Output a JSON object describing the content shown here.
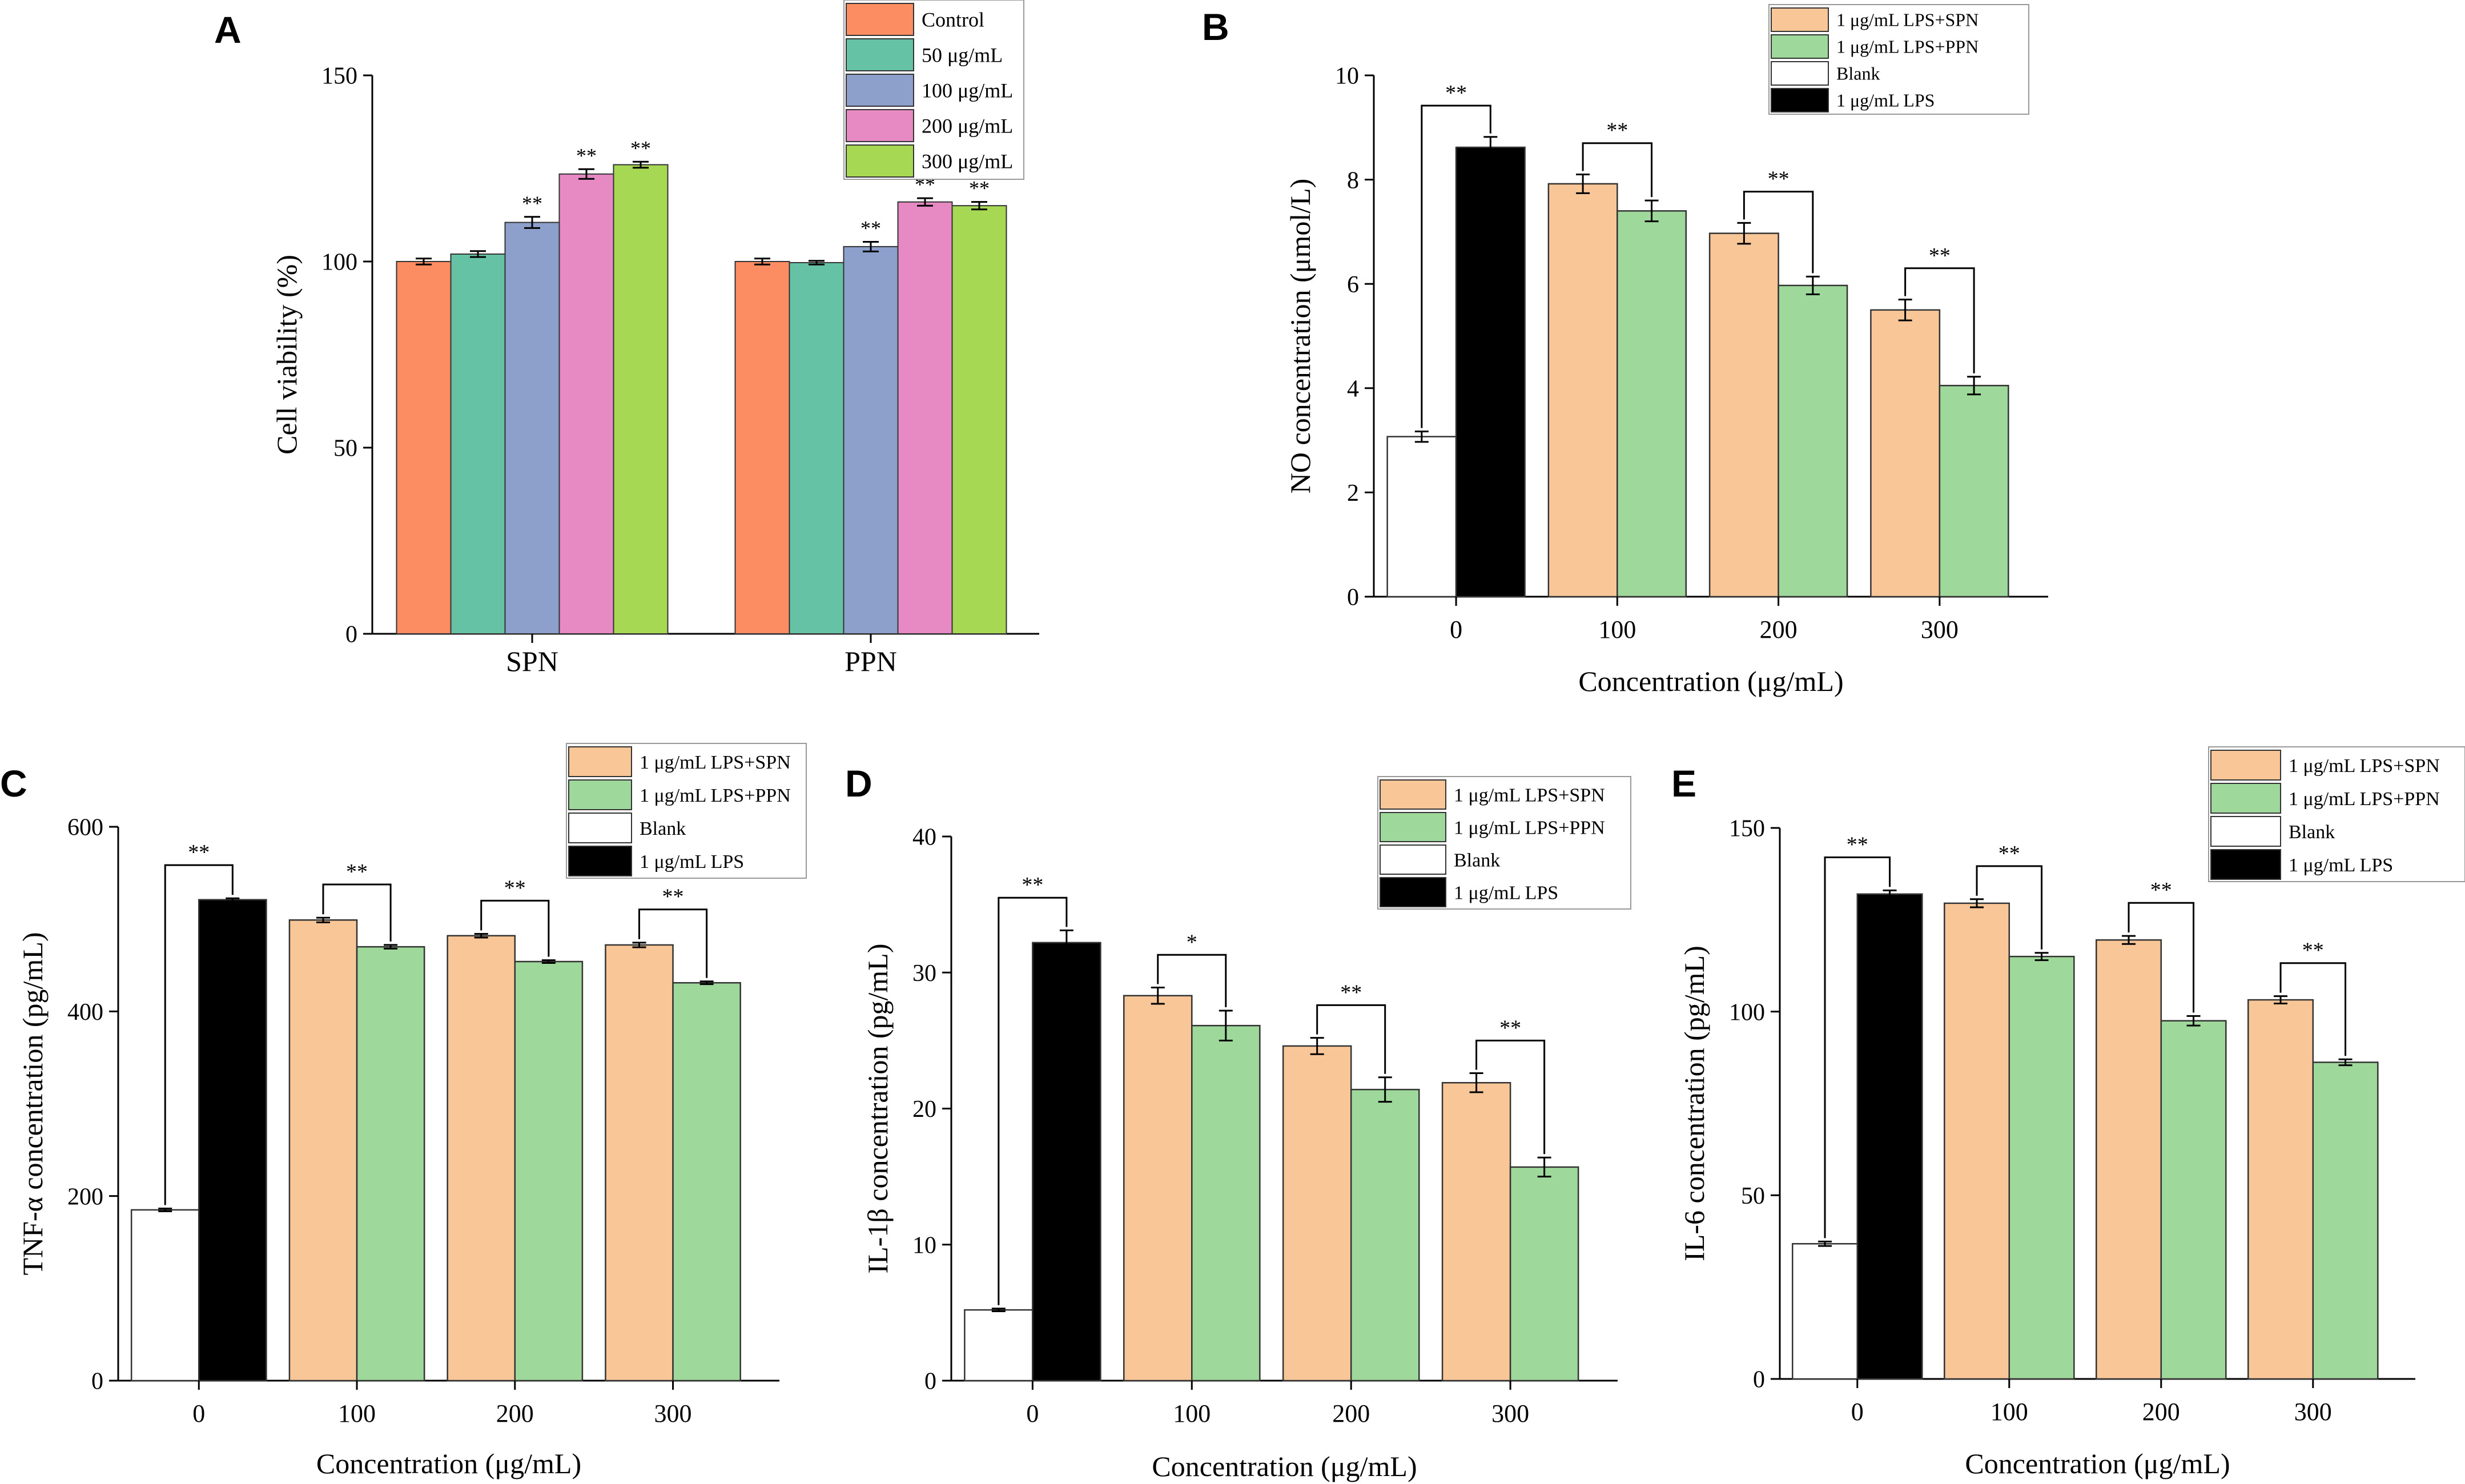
{
  "chart_data": [
    {
      "panel": "A",
      "type": "bar",
      "categories": [
        "SPN",
        "PPN"
      ],
      "series": [
        {
          "name": "Control",
          "color": "#FC8D62",
          "values": [
            100,
            100
          ],
          "errors": [
            0.8,
            0.8
          ],
          "sig": [
            "",
            ""
          ]
        },
        {
          "name": "50 μg/mL",
          "color": "#66C2A5",
          "values": [
            102,
            99.7
          ],
          "errors": [
            0.8,
            0.5
          ],
          "sig": [
            "",
            ""
          ]
        },
        {
          "name": "100 μg/mL",
          "color": "#8DA0CB",
          "values": [
            110.5,
            104
          ],
          "errors": [
            1.5,
            1.3
          ],
          "sig": [
            "**",
            "**"
          ]
        },
        {
          "name": "200 μg/mL",
          "color": "#E78AC3",
          "values": [
            123.5,
            116
          ],
          "errors": [
            1.3,
            1.0
          ],
          "sig": [
            "**",
            "**"
          ]
        },
        {
          "name": "300 μg/mL",
          "color": "#A6D854",
          "values": [
            126,
            115
          ],
          "errors": [
            0.8,
            1.0
          ],
          "sig": [
            "**",
            "**"
          ]
        }
      ],
      "xlabel": "",
      "ylabel": "Cell viability (%)",
      "ylim": [
        0,
        150
      ],
      "yticks": [
        "0",
        "50",
        "100",
        "150"
      ],
      "legend": "top-right"
    },
    {
      "panel": "B",
      "type": "bar",
      "categories": [
        "0",
        "100",
        "200",
        "300"
      ],
      "xlabel": "Concentration (μg/mL)",
      "ylabel": "NO concentration (μmol/L)",
      "ylim": [
        0,
        10
      ],
      "yticks": [
        "0",
        "2",
        "4",
        "6",
        "8",
        "10"
      ],
      "bars": [
        {
          "value": 3.07,
          "error": 0.1,
          "series": 2
        },
        {
          "value": 8.62,
          "error": 0.2,
          "series": 3
        },
        {
          "value": 7.92,
          "error": 0.18,
          "series": 0
        },
        {
          "value": 7.4,
          "error": 0.2,
          "series": 1
        },
        {
          "value": 6.97,
          "error": 0.2,
          "series": 0
        },
        {
          "value": 5.97,
          "error": 0.17,
          "series": 1
        },
        {
          "value": 5.5,
          "error": 0.2,
          "series": 0
        },
        {
          "value": 4.05,
          "error": 0.17,
          "series": 1
        }
      ],
      "brackets": [
        {
          "from": 0,
          "to": 1,
          "label": "**"
        },
        {
          "from": 2,
          "to": 3,
          "label": "**"
        },
        {
          "from": 4,
          "to": 5,
          "label": "**"
        },
        {
          "from": 6,
          "to": 7,
          "label": "**"
        }
      ],
      "legend_entries": [
        {
          "name": "1 μg/mL LPS+SPN",
          "color": "#F9C697"
        },
        {
          "name": "1 μg/mL LPS+PPN",
          "color": "#9ED99B"
        },
        {
          "name": "Blank",
          "color": "#FFFFFF"
        },
        {
          "name": "1 μg/mL LPS",
          "color": "#000000"
        }
      ],
      "legend": "top-right"
    },
    {
      "panel": "C",
      "type": "bar",
      "categories": [
        "0",
        "100",
        "200",
        "300"
      ],
      "xlabel": "Concentration (μg/mL)",
      "ylabel": "TNF-α concentration (pg/mL)",
      "ylim": [
        0,
        600
      ],
      "yticks": [
        "0",
        "200",
        "400",
        "600"
      ],
      "bars": [
        {
          "value": 185,
          "error": 1.5,
          "series": 2
        },
        {
          "value": 521,
          "error": 1.5,
          "series": 3
        },
        {
          "value": 499,
          "error": 2.5,
          "series": 0
        },
        {
          "value": 470,
          "error": 2,
          "series": 1
        },
        {
          "value": 482,
          "error": 2,
          "series": 0
        },
        {
          "value": 454,
          "error": 1.5,
          "series": 1
        },
        {
          "value": 472,
          "error": 2.5,
          "series": 0
        },
        {
          "value": 431,
          "error": 1.5,
          "series": 1
        }
      ],
      "brackets": [
        {
          "from": 0,
          "to": 1,
          "label": "**"
        },
        {
          "from": 2,
          "to": 3,
          "label": "**"
        },
        {
          "from": 4,
          "to": 5,
          "label": "**"
        },
        {
          "from": 6,
          "to": 7,
          "label": "**"
        }
      ],
      "legend_entries": [
        {
          "name": "1 μg/mL LPS+SPN",
          "color": "#F9C697"
        },
        {
          "name": "1 μg/mL LPS+PPN",
          "color": "#9ED99B"
        },
        {
          "name": "Blank",
          "color": "#FFFFFF"
        },
        {
          "name": "1 μg/mL LPS",
          "color": "#000000"
        }
      ],
      "legend": "top-right"
    },
    {
      "panel": "D",
      "type": "bar",
      "categories": [
        "0",
        "100",
        "200",
        "300"
      ],
      "xlabel": "Concentration (μg/mL)",
      "ylabel": "IL-1β concentration (pg/mL)",
      "ylim": [
        0,
        40
      ],
      "yticks": [
        "0",
        "10",
        "20",
        "30",
        "40"
      ],
      "bars": [
        {
          "value": 5.2,
          "error": 0.1,
          "series": 2
        },
        {
          "value": 32.2,
          "error": 0.9,
          "series": 3
        },
        {
          "value": 28.3,
          "error": 0.6,
          "series": 0
        },
        {
          "value": 26.1,
          "error": 1.1,
          "series": 1
        },
        {
          "value": 24.6,
          "error": 0.6,
          "series": 0
        },
        {
          "value": 21.4,
          "error": 0.9,
          "series": 1
        },
        {
          "value": 21.9,
          "error": 0.7,
          "series": 0
        },
        {
          "value": 15.7,
          "error": 0.7,
          "series": 1
        }
      ],
      "brackets": [
        {
          "from": 0,
          "to": 1,
          "label": "**"
        },
        {
          "from": 2,
          "to": 3,
          "label": "*"
        },
        {
          "from": 4,
          "to": 5,
          "label": "**"
        },
        {
          "from": 6,
          "to": 7,
          "label": "**"
        }
      ],
      "legend_entries": [
        {
          "name": "1 μg/mL LPS+SPN",
          "color": "#F9C697"
        },
        {
          "name": "1 μg/mL LPS+PPN",
          "color": "#9ED99B"
        },
        {
          "name": "Blank",
          "color": "#FFFFFF"
        },
        {
          "name": "1 μg/mL LPS",
          "color": "#000000"
        }
      ],
      "legend": "top-right"
    },
    {
      "panel": "E",
      "type": "bar",
      "categories": [
        "0",
        "100",
        "200",
        "300"
      ],
      "xlabel": "Concentration (μg/mL)",
      "ylabel": "IL-6 concentration (pg/mL)",
      "ylim": [
        0,
        150
      ],
      "yticks": [
        "0",
        "50",
        "100",
        "150"
      ],
      "bars": [
        {
          "value": 36.8,
          "error": 0.6,
          "series": 2
        },
        {
          "value": 132,
          "error": 1.0,
          "series": 3
        },
        {
          "value": 129.5,
          "error": 1.1,
          "series": 0
        },
        {
          "value": 115,
          "error": 1.0,
          "series": 1
        },
        {
          "value": 119.5,
          "error": 1.1,
          "series": 0
        },
        {
          "value": 97.5,
          "error": 1.3,
          "series": 1
        },
        {
          "value": 103.2,
          "error": 1.0,
          "series": 0
        },
        {
          "value": 86.2,
          "error": 0.8,
          "series": 1
        }
      ],
      "brackets": [
        {
          "from": 0,
          "to": 1,
          "label": "**"
        },
        {
          "from": 2,
          "to": 3,
          "label": "**"
        },
        {
          "from": 4,
          "to": 5,
          "label": "**"
        },
        {
          "from": 6,
          "to": 7,
          "label": "**"
        }
      ],
      "legend_entries": [
        {
          "name": "1 μg/mL LPS+SPN",
          "color": "#F9C697"
        },
        {
          "name": "1 μg/mL LPS+PPN",
          "color": "#9ED99B"
        },
        {
          "name": "Blank",
          "color": "#FFFFFF"
        },
        {
          "name": "1 μg/mL LPS",
          "color": "#000000"
        }
      ],
      "legend": "top-right"
    }
  ]
}
